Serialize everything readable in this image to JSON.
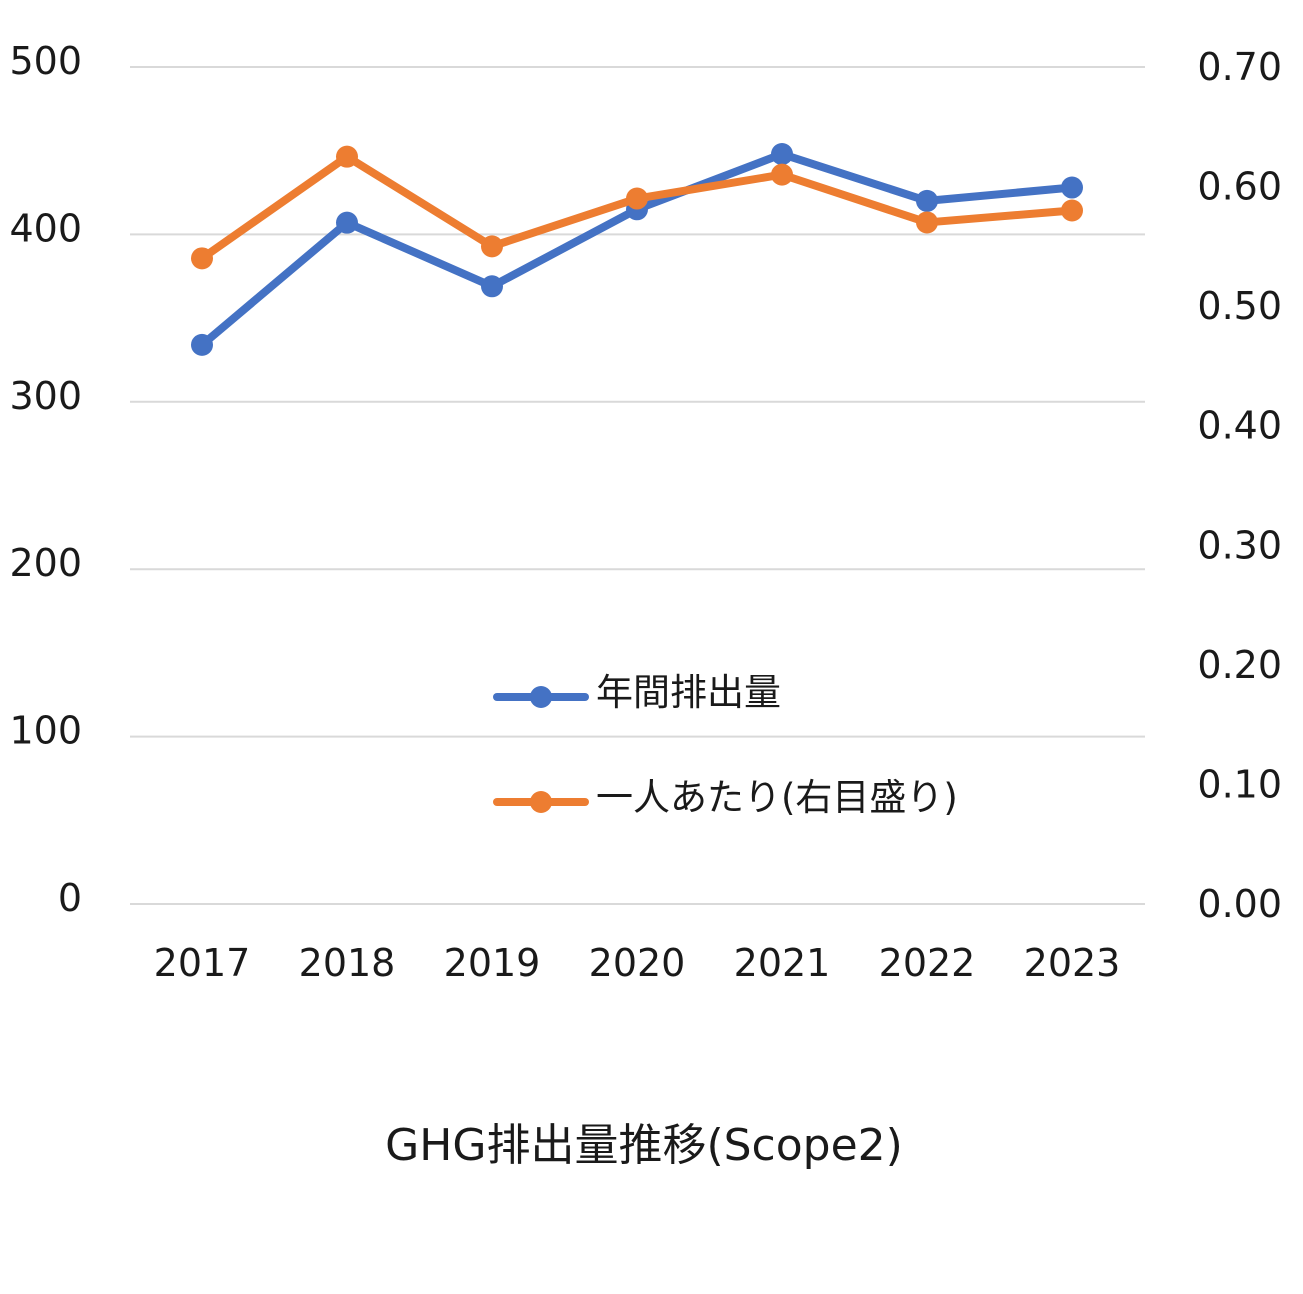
{
  "chart_data": {
    "type": "line",
    "title": "GHG排出量推移(Scope2)",
    "categories": [
      "2017",
      "2018",
      "2019",
      "2020",
      "2021",
      "2022",
      "2023"
    ],
    "y_left": {
      "ylim": [
        0,
        500
      ],
      "ticks": [
        "0",
        "100",
        "200",
        "300",
        "400",
        "500"
      ],
      "tick_values": [
        0,
        100,
        200,
        300,
        400,
        500
      ]
    },
    "y_right": {
      "ylim": [
        0,
        0.7
      ],
      "ticks": [
        "0.00",
        "0.10",
        "0.20",
        "0.30",
        "0.40",
        "0.50",
        "0.60",
        "0.70"
      ],
      "tick_values": [
        0,
        0.1,
        0.2,
        0.3,
        0.4,
        0.5,
        0.6,
        0.7
      ]
    },
    "series": [
      {
        "name": "年間排出量",
        "axis": "left",
        "color": "#4472C4",
        "values": [
          334,
          407,
          369,
          415,
          448,
          420,
          428
        ]
      },
      {
        "name": "一人あたり(右目盛り)",
        "axis": "right",
        "color": "#ED7D31",
        "values": [
          0.54,
          0.625,
          0.55,
          0.59,
          0.61,
          0.57,
          0.58
        ]
      }
    ],
    "grid": true,
    "legend_position": "center"
  }
}
